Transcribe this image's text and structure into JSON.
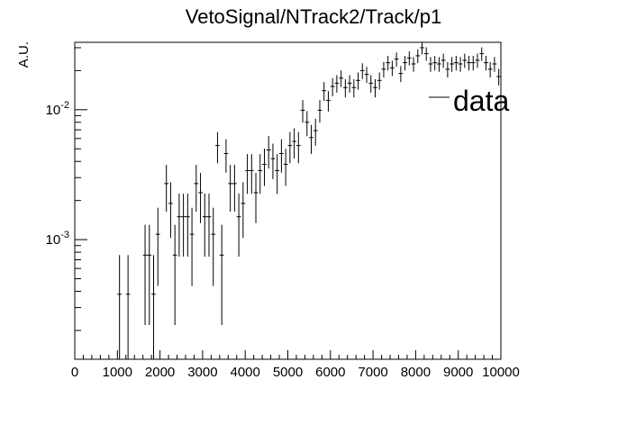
{
  "chart_data": {
    "type": "scatter",
    "title": "VetoSignal/NTrack2/Track/p1",
    "xlabel": "",
    "ylabel": "A.U.",
    "xlim": [
      0,
      10000
    ],
    "ylim": [
      0.00012,
      0.033
    ],
    "yscale": "log",
    "grid": false,
    "legend": {
      "position": "top-right",
      "entries": [
        "data"
      ]
    },
    "x_ticks": [
      "0",
      "1000",
      "2000",
      "3000",
      "4000",
      "5000",
      "6000",
      "7000",
      "8000",
      "9000",
      "10000"
    ],
    "y_ticks": [
      {
        "value": 0.01,
        "base": "10",
        "exp": "-2"
      },
      {
        "value": 0.001,
        "base": "10",
        "exp": "-3"
      }
    ],
    "series": [
      {
        "name": "data",
        "bin_width": 100,
        "x": [
          1050,
          1250,
          1650,
          1750,
          1850,
          1950,
          2150,
          2250,
          2350,
          2450,
          2550,
          2650,
          2750,
          2850,
          2950,
          3050,
          3150,
          3250,
          3350,
          3450,
          3550,
          3650,
          3750,
          3850,
          3950,
          4050,
          4150,
          4250,
          4350,
          4450,
          4550,
          4650,
          4750,
          4850,
          4950,
          5050,
          5150,
          5250,
          5350,
          5450,
          5550,
          5650,
          5750,
          5850,
          5950,
          6050,
          6150,
          6250,
          6350,
          6450,
          6550,
          6650,
          6750,
          6850,
          6950,
          7050,
          7150,
          7250,
          7350,
          7450,
          7550,
          7650,
          7750,
          7850,
          7950,
          8050,
          8150,
          8250,
          8350,
          8450,
          8550,
          8650,
          8750,
          8850,
          8950,
          9050,
          9150,
          9250,
          9350,
          9450,
          9550,
          9650,
          9750,
          9850,
          9950
        ],
        "y": [
          0.00038,
          0.00038,
          0.00076,
          0.00076,
          0.00038,
          0.0011,
          0.0027,
          0.0019,
          0.00076,
          0.0015,
          0.0015,
          0.0015,
          0.0011,
          0.0027,
          0.0023,
          0.0015,
          0.0015,
          0.0011,
          0.0053,
          0.00076,
          0.0046,
          0.0027,
          0.0027,
          0.0015,
          0.0019,
          0.0034,
          0.0034,
          0.0023,
          0.0034,
          0.0038,
          0.0049,
          0.0042,
          0.0034,
          0.0046,
          0.0038,
          0.0053,
          0.0057,
          0.0053,
          0.0099,
          0.008,
          0.0061,
          0.0069,
          0.0099,
          0.014,
          0.0118,
          0.0151,
          0.016,
          0.0175,
          0.0148,
          0.016,
          0.0148,
          0.0168,
          0.02,
          0.0187,
          0.016,
          0.0148,
          0.0168,
          0.0205,
          0.023,
          0.021,
          0.0245,
          0.019,
          0.023,
          0.025,
          0.0225,
          0.026,
          0.03,
          0.027,
          0.0225,
          0.023,
          0.0225,
          0.024,
          0.0205,
          0.0225,
          0.023,
          0.0225,
          0.024,
          0.023,
          0.023,
          0.024,
          0.027,
          0.023,
          0.0205,
          0.0225,
          0.018
        ],
        "y_err": [
          0.00038,
          0.00038,
          0.00054,
          0.00054,
          0.00038,
          0.00066,
          0.00106,
          0.00087,
          0.00054,
          0.00076,
          0.00076,
          0.00076,
          0.00066,
          0.00106,
          0.00096,
          0.00076,
          0.00076,
          0.00066,
          0.00143,
          0.00054,
          0.00132,
          0.00106,
          0.00106,
          0.00076,
          0.00087,
          0.00115,
          0.00115,
          0.00096,
          0.00115,
          0.00121,
          0.00138,
          0.00128,
          0.00115,
          0.00132,
          0.00121,
          0.00143,
          0.00148,
          0.00143,
          0.00195,
          0.00175,
          0.00153,
          0.00162,
          0.00195,
          0.00232,
          0.00212,
          0.0024,
          0.00247,
          0.00258,
          0.00237,
          0.00247,
          0.00237,
          0.00253,
          0.00276,
          0.00267,
          0.00247,
          0.00237,
          0.00253,
          0.0028,
          0.00296,
          0.00283,
          0.00306,
          0.00269,
          0.00296,
          0.00308,
          0.00293,
          0.00315,
          0.00338,
          0.00321,
          0.00293,
          0.00296,
          0.00293,
          0.00302,
          0.0028,
          0.00293,
          0.00296,
          0.00293,
          0.00302,
          0.00296,
          0.00296,
          0.00302,
          0.00321,
          0.00296,
          0.0028,
          0.00293,
          0.00262
        ]
      }
    ]
  }
}
